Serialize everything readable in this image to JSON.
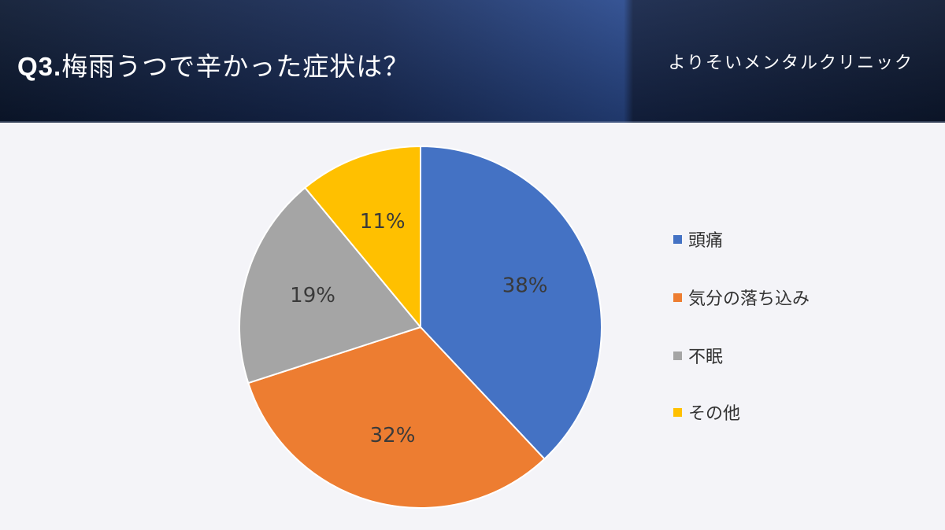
{
  "header": {
    "title_prefix": "Q3.",
    "title_text": "梅雨うつで辛かった症状は？",
    "brand": "よりそいメンタルクリニック"
  },
  "chart_data": {
    "type": "pie",
    "categories": [
      "頭痛",
      "気分の落ち込み",
      "不眠",
      "その他"
    ],
    "values": [
      38,
      32,
      19,
      11
    ],
    "labels": [
      "38%",
      "32%",
      "19%",
      "11%"
    ],
    "colors": [
      "#4472c4",
      "#ed7d31",
      "#a5a5a5",
      "#ffc000"
    ],
    "legend_position": "right"
  }
}
